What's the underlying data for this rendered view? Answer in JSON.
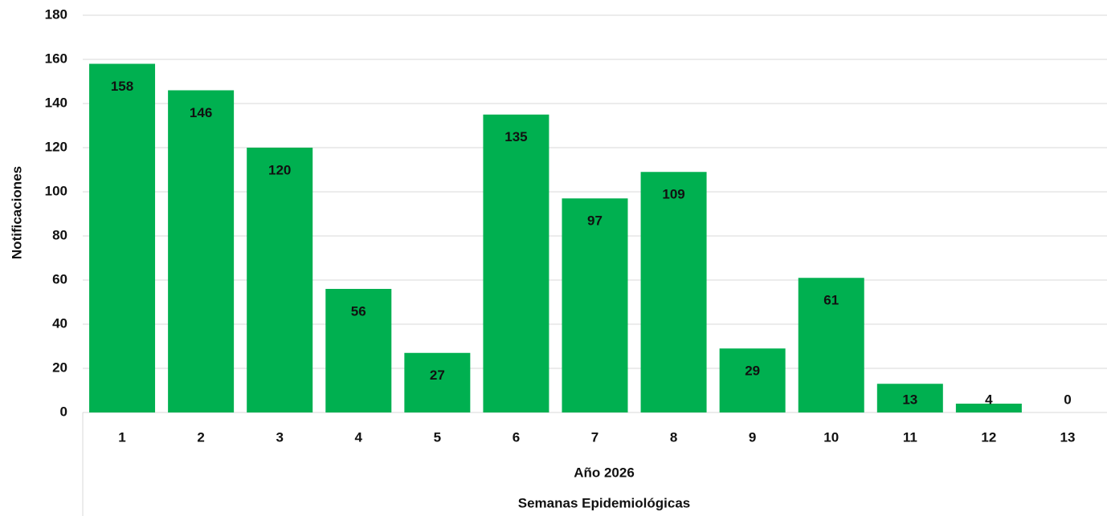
{
  "chart_data": {
    "type": "bar",
    "ylabel": "Notificaciones",
    "x_group_label": "Año 2026",
    "xlabel": "Semanas Epidemiológicas",
    "categories": [
      "1",
      "2",
      "3",
      "4",
      "5",
      "6",
      "7",
      "8",
      "9",
      "10",
      "11",
      "12",
      "13"
    ],
    "values": [
      158,
      146,
      120,
      56,
      27,
      135,
      97,
      109,
      29,
      61,
      13,
      4,
      0
    ],
    "color": "#00b050",
    "ylim": [
      0,
      180
    ],
    "yticks": [
      0,
      20,
      40,
      60,
      80,
      100,
      120,
      140,
      160,
      180
    ],
    "grid": true
  }
}
